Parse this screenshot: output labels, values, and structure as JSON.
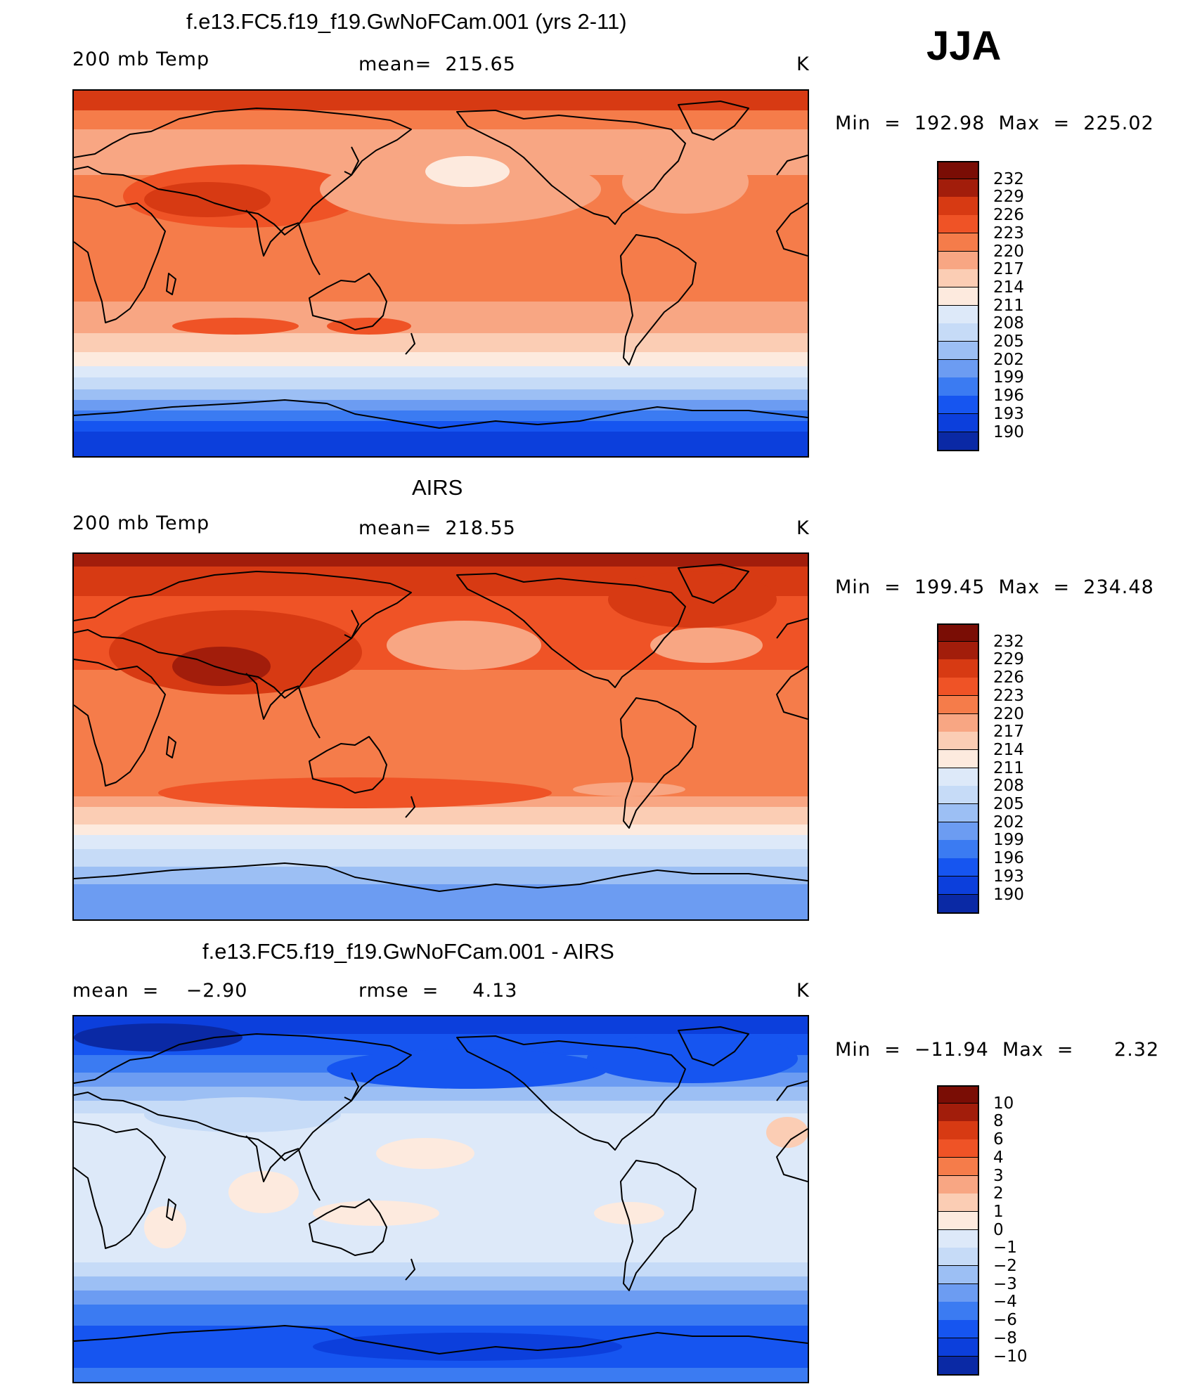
{
  "season": "JJA",
  "colors": {
    "abs": [
      "#08006b",
      "#0a29a5",
      "#0c3fdc",
      "#1655f0",
      "#3b7bf2",
      "#6c9cf2",
      "#9cbff4",
      "#c6dbf7",
      "#dde9f9",
      "#fdeade",
      "#fbcdb4",
      "#f8a683",
      "#f57c4a",
      "#ef5326",
      "#d73a13",
      "#a21d0b",
      "#7a0d05"
    ],
    "diff": [
      "#08006b",
      "#0a29a5",
      "#0c3fdc",
      "#1655f0",
      "#3b7bf2",
      "#6c9cf2",
      "#9cbff4",
      "#c6dbf7",
      "#dde9f9",
      "#fdeade",
      "#fbcdb4",
      "#f8a683",
      "#f57c4a",
      "#ef5326",
      "#d73a13",
      "#a21d0b",
      "#7a0d05"
    ]
  },
  "panels": [
    {
      "title": "f.e13.FC5.f19_f19.GwNoFCam.001 (yrs 2-11)",
      "left_label": "200 mb Temp",
      "center_label": "mean=  215.65",
      "units": "K",
      "minmax": "Min  =  192.98  Max  =  225.02",
      "field": "model",
      "colorbar_ticks": [
        "232",
        "229",
        "226",
        "223",
        "220",
        "217",
        "214",
        "211",
        "208",
        "205",
        "202",
        "199",
        "196",
        "193",
        "190"
      ]
    },
    {
      "title": "AIRS",
      "left_label": "200 mb Temp",
      "center_label": "mean=  218.55",
      "units": "K",
      "minmax": "Min  =  199.45  Max  =  234.48",
      "field": "obs",
      "colorbar_ticks": [
        "232",
        "229",
        "226",
        "223",
        "220",
        "217",
        "214",
        "211",
        "208",
        "205",
        "202",
        "199",
        "196",
        "193",
        "190"
      ]
    },
    {
      "title": "f.e13.FC5.f19_f19.GwNoFCam.001 - AIRS",
      "left_label": "mean  =    −2.90",
      "center_label": "rmse  =     4.13",
      "units": "K",
      "minmax": "Min  =  −11.94  Max  =      2.32",
      "field": "diff",
      "colorbar_ticks": [
        "10",
        "8",
        "6",
        "4",
        "3",
        "2",
        "1",
        "0",
        "−1",
        "−2",
        "−3",
        "−4",
        "−6",
        "−8",
        "−10"
      ]
    }
  ]
}
